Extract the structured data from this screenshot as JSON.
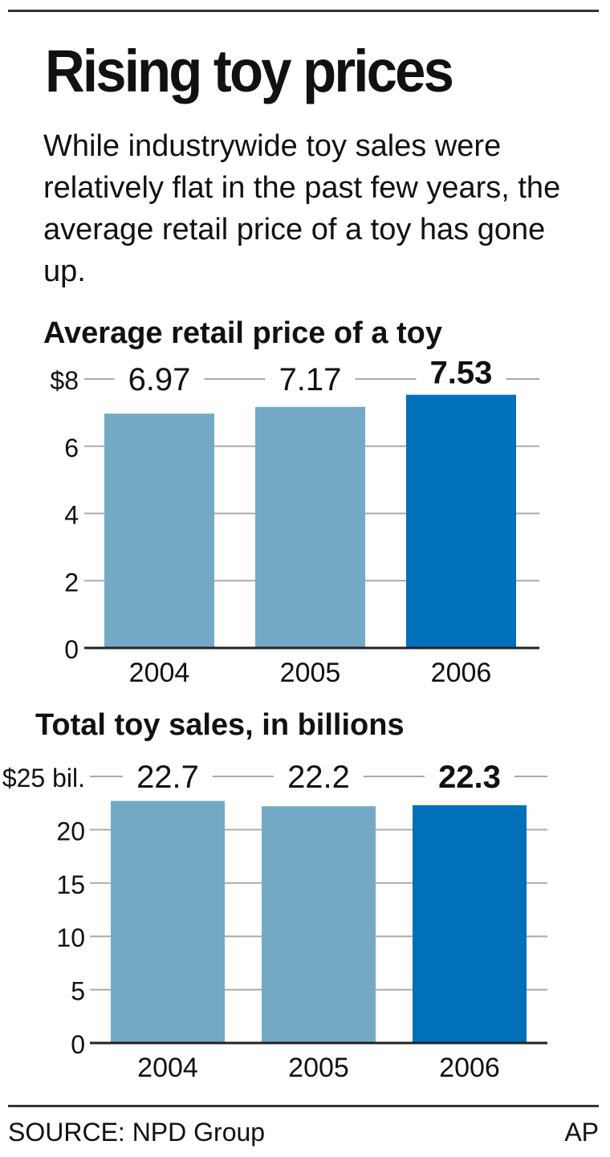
{
  "title": "Rising toy prices",
  "subtitle": "While industrywide toy sales were relatively flat in the past few years, the average retail price of a toy has gone up.",
  "source": "SOURCE: NPD Group",
  "credit": "AP",
  "colors": {
    "bar": "#74a9c6",
    "highlight": "#0070bb",
    "grid": "#aaaaaa",
    "axis": "#222222"
  },
  "chart_data": [
    {
      "type": "bar",
      "title": "Average retail price of a toy",
      "categories": [
        "2004",
        "2005",
        "2006"
      ],
      "values": [
        6.97,
        7.17,
        7.53
      ],
      "value_labels": [
        "6.97",
        "7.17",
        "7.53"
      ],
      "highlight_index": 2,
      "ylim": [
        0,
        8
      ],
      "yticks": [
        0,
        2,
        4,
        6,
        8
      ],
      "ytick_labels": [
        "0",
        "2",
        "4",
        "6",
        "$8"
      ],
      "grid": true
    },
    {
      "type": "bar",
      "title": "Total toy sales, in billions",
      "categories": [
        "2004",
        "2005",
        "2006"
      ],
      "values": [
        22.7,
        22.2,
        22.3
      ],
      "value_labels": [
        "22.7",
        "22.2",
        "22.3"
      ],
      "highlight_index": 2,
      "ylim": [
        0,
        25
      ],
      "yticks": [
        0,
        5,
        10,
        15,
        20,
        25
      ],
      "ytick_labels": [
        "0",
        "5",
        "10",
        "15",
        "20",
        "$25 bil."
      ],
      "grid": true
    }
  ]
}
